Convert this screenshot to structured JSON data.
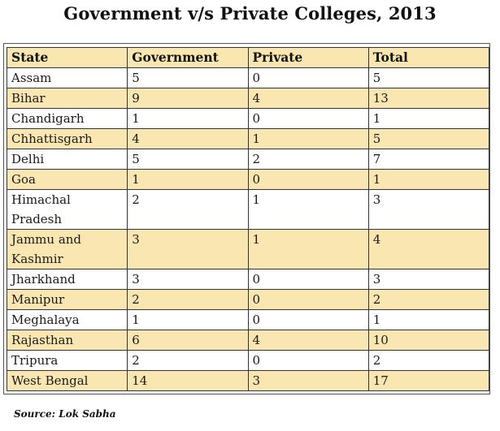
{
  "chart_data": {
    "type": "table",
    "title": "Government v/s Private Colleges, 2013",
    "columns": [
      "State",
      "Government",
      "Private",
      "Total"
    ],
    "rows": [
      [
        "Assam",
        "5",
        "0",
        "5"
      ],
      [
        "Bihar",
        "9",
        "4",
        "13"
      ],
      [
        "Chandigarh",
        "1",
        "0",
        "1"
      ],
      [
        "Chhattisgarh",
        "4",
        "1",
        "5"
      ],
      [
        "Delhi",
        "5",
        "2",
        "7"
      ],
      [
        "Goa",
        "1",
        "0",
        "1"
      ],
      [
        "Himachal Pradesh",
        "2",
        "1",
        "3"
      ],
      [
        "Jammu and Kashmir",
        "3",
        "1",
        "4"
      ],
      [
        "Jharkhand",
        "3",
        "0",
        "3"
      ],
      [
        "Manipur",
        "2",
        "0",
        "2"
      ],
      [
        "Meghalaya",
        "1",
        "0",
        "1"
      ],
      [
        "Rajasthan",
        "6",
        "4",
        "10"
      ],
      [
        "Tripura",
        "2",
        "0",
        "2"
      ],
      [
        "West Bengal",
        "14",
        "3",
        "17"
      ]
    ],
    "source": "Source: Lok Sabha"
  },
  "colors": {
    "band": "#fae6b1",
    "border": "#333333"
  }
}
